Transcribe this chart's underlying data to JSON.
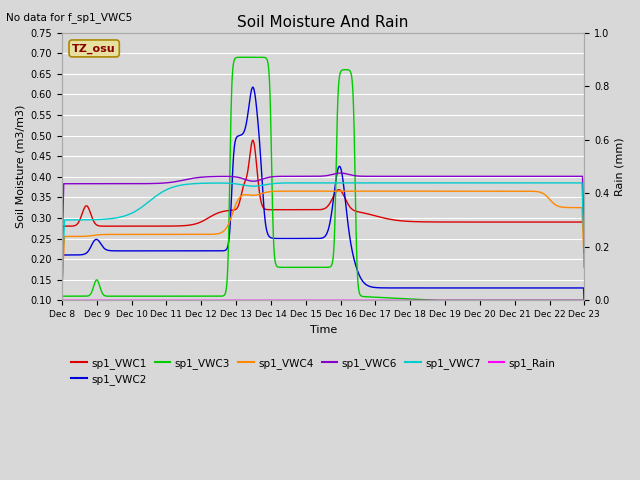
{
  "title": "Soil Moisture And Rain",
  "subtitle": "No data for f_sp1_VWC5",
  "xlabel": "Time",
  "ylabel_left": "Soil Moisture (m3/m3)",
  "ylabel_right": "Rain (mm)",
  "ylim_left": [
    0.1,
    0.75
  ],
  "ylim_right": [
    0.0,
    1.0
  ],
  "bg_color": "#d8d8d8",
  "annotation_text": "TZ_osu",
  "annotation_bg": "#e8e0a0",
  "annotation_border": "#aa8800",
  "series": {
    "sp1_VWC1": {
      "color": "#dd0000",
      "lw": 1.0
    },
    "sp1_VWC2": {
      "color": "#0000dd",
      "lw": 1.0
    },
    "sp1_VWC3": {
      "color": "#00cc00",
      "lw": 1.0
    },
    "sp1_VWC4": {
      "color": "#ff8800",
      "lw": 1.0
    },
    "sp1_VWC6": {
      "color": "#8800cc",
      "lw": 1.0
    },
    "sp1_VWC7": {
      "color": "#00cccc",
      "lw": 1.0
    },
    "sp1_Rain": {
      "color": "#ff00ff",
      "lw": 1.0
    }
  },
  "xtick_labels": [
    "Dec 8",
    "Dec 9",
    "Dec 10",
    "Dec 11",
    "Dec 12",
    "Dec 13",
    "Dec 14",
    "Dec 15",
    "Dec 16",
    "Dec 17",
    "Dec 18",
    "Dec 19",
    "Dec 20",
    "Dec 21",
    "Dec 22",
    "Dec 23"
  ],
  "yticks_left": [
    0.1,
    0.15,
    0.2,
    0.25,
    0.3,
    0.35,
    0.4,
    0.45,
    0.5,
    0.55,
    0.6,
    0.65,
    0.7,
    0.75
  ],
  "yticks_right": [
    0.0,
    0.2,
    0.4,
    0.6,
    0.8,
    1.0
  ],
  "figsize": [
    6.4,
    4.8
  ],
  "dpi": 100
}
